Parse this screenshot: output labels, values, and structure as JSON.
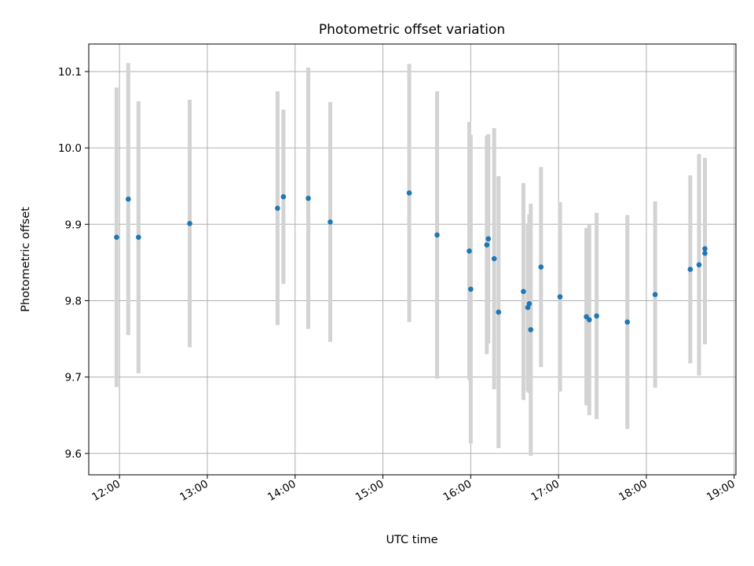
{
  "chart_data": {
    "type": "scatter",
    "title": "Photometric offset variation",
    "xlabel": "UTC time",
    "ylabel": "Photometric offset",
    "x_tick_labels": [
      "12:00",
      "13:00",
      "14:00",
      "15:00",
      "16:00",
      "17:00",
      "18:00",
      "19:00"
    ],
    "y_tick_labels": [
      "9.6",
      "9.7",
      "9.8",
      "9.9",
      "10.0",
      "10.1"
    ],
    "x_ticks_hours": [
      12,
      13,
      14,
      15,
      16,
      17,
      18,
      19
    ],
    "y_ticks": [
      9.6,
      9.7,
      9.8,
      9.9,
      10.0,
      10.1
    ],
    "xlim_hours": [
      11.65,
      19.02
    ],
    "ylim": [
      9.572,
      10.136
    ],
    "grid": true,
    "colors": {
      "point": "#1f77b4",
      "errorbar": "#d3d3d3",
      "grid": "#b0b0b0"
    },
    "points": [
      {
        "t": "11:58",
        "y": 9.883,
        "err": 0.196
      },
      {
        "t": "12:06",
        "y": 9.933,
        "err": 0.178
      },
      {
        "t": "12:13",
        "y": 9.883,
        "err": 0.178
      },
      {
        "t": "12:48",
        "y": 9.901,
        "err": 0.162
      },
      {
        "t": "13:48",
        "y": 9.921,
        "err": 0.153
      },
      {
        "t": "13:52",
        "y": 9.936,
        "err": 0.114
      },
      {
        "t": "14:09",
        "y": 9.934,
        "err": 0.171
      },
      {
        "t": "14:24",
        "y": 9.903,
        "err": 0.157
      },
      {
        "t": "15:18",
        "y": 9.941,
        "err": 0.169
      },
      {
        "t": "15:37",
        "y": 9.886,
        "err": 0.188
      },
      {
        "t": "15:59",
        "y": 9.865,
        "err": 0.169
      },
      {
        "t": "16:00",
        "y": 9.815,
        "err": 0.202
      },
      {
        "t": "16:11",
        "y": 9.873,
        "err": 0.143
      },
      {
        "t": "16:12",
        "y": 9.881,
        "err": 0.137
      },
      {
        "t": "16:16",
        "y": 9.855,
        "err": 0.171
      },
      {
        "t": "16:19",
        "y": 9.785,
        "err": 0.178
      },
      {
        "t": "16:36",
        "y": 9.812,
        "err": 0.142
      },
      {
        "t": "16:39",
        "y": 9.791,
        "err": 0.11
      },
      {
        "t": "16:40",
        "y": 9.796,
        "err": 0.117
      },
      {
        "t": "16:41",
        "y": 9.762,
        "err": 0.165
      },
      {
        "t": "16:48",
        "y": 9.844,
        "err": 0.131
      },
      {
        "t": "17:01",
        "y": 9.805,
        "err": 0.124
      },
      {
        "t": "17:19",
        "y": 9.779,
        "err": 0.116
      },
      {
        "t": "17:21",
        "y": 9.775,
        "err": 0.125
      },
      {
        "t": "17:26",
        "y": 9.78,
        "err": 0.135
      },
      {
        "t": "17:47",
        "y": 9.772,
        "err": 0.14
      },
      {
        "t": "18:06",
        "y": 9.808,
        "err": 0.122
      },
      {
        "t": "18:30",
        "y": 9.841,
        "err": 0.123
      },
      {
        "t": "18:36",
        "y": 9.847,
        "err": 0.145
      },
      {
        "t": "18:40",
        "y": 9.868,
        "err": 0.119
      },
      {
        "t": "18:40",
        "y": 9.862,
        "err": 0.119
      }
    ]
  }
}
